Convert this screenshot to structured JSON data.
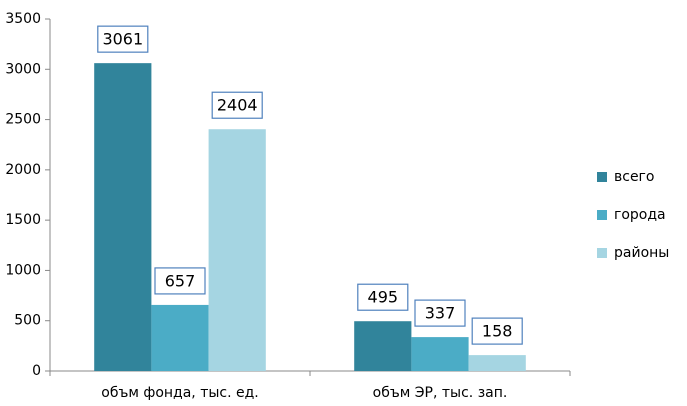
{
  "chart_data": {
    "type": "bar",
    "categories": [
      "объм фонда, тыс. ед.",
      "объм ЭР, тыс. зап."
    ],
    "series": [
      {
        "name": "всего",
        "color": "#31849b",
        "values": [
          3061,
          495
        ]
      },
      {
        "name": "города",
        "color": "#4bacc6",
        "values": [
          657,
          337
        ]
      },
      {
        "name": "районы",
        "color": "#a5d5e2",
        "values": [
          2404,
          158
        ]
      }
    ],
    "ylim": [
      0,
      3500
    ],
    "yticks": [
      0,
      500,
      1000,
      1500,
      2000,
      2500,
      3000,
      3500
    ],
    "grid": false,
    "legend": "right"
  }
}
